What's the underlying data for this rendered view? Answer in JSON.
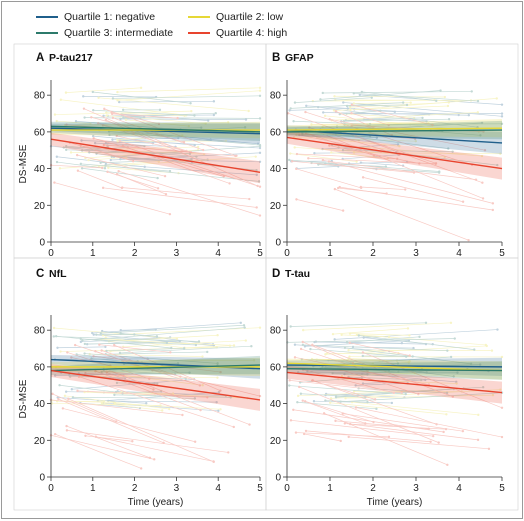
{
  "legend": {
    "items": [
      {
        "label": "Quartile 1: negative",
        "color": "#1f5f8b"
      },
      {
        "label": "Quartile 2: low",
        "color": "#e6d836"
      },
      {
        "label": "Quartile 3: intermediate",
        "color": "#2c7a6b"
      },
      {
        "label": "Quartile 4: high",
        "color": "#e8442e"
      }
    ]
  },
  "chart_data": [
    {
      "type": "line",
      "panel_letter": "A",
      "title": "P-tau217",
      "ylabel": "DS-MSE",
      "xlabel": "",
      "xlim": [
        0,
        5
      ],
      "ylim": [
        0,
        85
      ],
      "x_ticks": [
        0,
        1,
        2,
        3,
        4,
        5
      ],
      "y_ticks": [
        0,
        20,
        40,
        60,
        80
      ],
      "series": [
        {
          "name": "Quartile 1: negative",
          "x": [
            0,
            5
          ],
          "y": [
            62,
            59
          ],
          "ci_lower": [
            59.5,
            53.5
          ],
          "ci_upper": [
            64.5,
            64.5
          ]
        },
        {
          "name": "Quartile 2: low",
          "x": [
            0,
            5
          ],
          "y": [
            61,
            61
          ],
          "ci_lower": [
            58.5,
            56.5
          ],
          "ci_upper": [
            63.5,
            65.5
          ]
        },
        {
          "name": "Quartile 3: intermediate",
          "x": [
            0,
            5
          ],
          "y": [
            63,
            60
          ],
          "ci_lower": [
            60.5,
            55
          ],
          "ci_upper": [
            65.5,
            65
          ]
        },
        {
          "name": "Quartile 4: high",
          "x": [
            0,
            5
          ],
          "y": [
            56,
            38
          ],
          "ci_lower": [
            52.5,
            32
          ],
          "ci_upper": [
            59.5,
            44
          ]
        }
      ]
    },
    {
      "type": "line",
      "panel_letter": "B",
      "title": "GFAP",
      "ylabel": "",
      "xlabel": "",
      "xlim": [
        0,
        5
      ],
      "ylim": [
        0,
        85
      ],
      "x_ticks": [
        0,
        1,
        2,
        3,
        4,
        5
      ],
      "y_ticks": [
        0,
        20,
        40,
        60,
        80
      ],
      "series": [
        {
          "name": "Quartile 1: negative",
          "x": [
            0,
            5
          ],
          "y": [
            61,
            54
          ],
          "ci_lower": [
            58.5,
            48
          ],
          "ci_upper": [
            63.5,
            60
          ]
        },
        {
          "name": "Quartile 2: low",
          "x": [
            0,
            5
          ],
          "y": [
            61,
            62
          ],
          "ci_lower": [
            58.5,
            57
          ],
          "ci_upper": [
            63.5,
            67
          ]
        },
        {
          "name": "Quartile 3: intermediate",
          "x": [
            0,
            5
          ],
          "y": [
            60,
            61
          ],
          "ci_lower": [
            57.5,
            56
          ],
          "ci_upper": [
            62.5,
            66
          ]
        },
        {
          "name": "Quartile 4: high",
          "x": [
            0,
            5
          ],
          "y": [
            57,
            40
          ],
          "ci_lower": [
            53.5,
            34
          ],
          "ci_upper": [
            60.5,
            46
          ]
        }
      ]
    },
    {
      "type": "line",
      "panel_letter": "C",
      "title": "NfL",
      "ylabel": "DS-MSE",
      "xlabel": "Time (years)",
      "xlim": [
        0,
        5
      ],
      "ylim": [
        0,
        85
      ],
      "x_ticks": [
        0,
        1,
        2,
        3,
        4,
        5
      ],
      "y_ticks": [
        0,
        20,
        40,
        60,
        80
      ],
      "series": [
        {
          "name": "Quartile 1: negative",
          "x": [
            0,
            5
          ],
          "y": [
            64,
            59
          ],
          "ci_lower": [
            61.5,
            53.5
          ],
          "ci_upper": [
            66.5,
            64.5
          ]
        },
        {
          "name": "Quartile 2: low",
          "x": [
            0,
            5
          ],
          "y": [
            60,
            60
          ],
          "ci_lower": [
            57.5,
            55
          ],
          "ci_upper": [
            62.5,
            65
          ]
        },
        {
          "name": "Quartile 3: intermediate",
          "x": [
            0,
            5
          ],
          "y": [
            58,
            61
          ],
          "ci_lower": [
            55.5,
            56
          ],
          "ci_upper": [
            60.5,
            66
          ]
        },
        {
          "name": "Quartile 4: high",
          "x": [
            0,
            5
          ],
          "y": [
            58,
            42
          ],
          "ci_lower": [
            54.5,
            36
          ],
          "ci_upper": [
            61.5,
            48
          ]
        }
      ]
    },
    {
      "type": "line",
      "panel_letter": "D",
      "title": "T-tau",
      "ylabel": "",
      "xlabel": "Time (years)",
      "xlim": [
        0,
        5
      ],
      "ylim": [
        0,
        85
      ],
      "x_ticks": [
        0,
        1,
        2,
        3,
        4,
        5
      ],
      "y_ticks": [
        0,
        20,
        40,
        60,
        80
      ],
      "series": [
        {
          "name": "Quartile 1: negative",
          "x": [
            0,
            5
          ],
          "y": [
            61,
            60
          ],
          "ci_lower": [
            58.5,
            55
          ],
          "ci_upper": [
            63.5,
            65
          ]
        },
        {
          "name": "Quartile 2: low",
          "x": [
            0,
            5
          ],
          "y": [
            62,
            58
          ],
          "ci_lower": [
            59.5,
            53
          ],
          "ci_upper": [
            64.5,
            63
          ]
        },
        {
          "name": "Quartile 3: intermediate",
          "x": [
            0,
            5
          ],
          "y": [
            59,
            58
          ],
          "ci_lower": [
            56.5,
            53
          ],
          "ci_upper": [
            61.5,
            63
          ]
        },
        {
          "name": "Quartile 4: high",
          "x": [
            0,
            5
          ],
          "y": [
            57,
            46
          ],
          "ci_lower": [
            53.5,
            40
          ],
          "ci_upper": [
            60.5,
            52
          ]
        }
      ]
    }
  ]
}
